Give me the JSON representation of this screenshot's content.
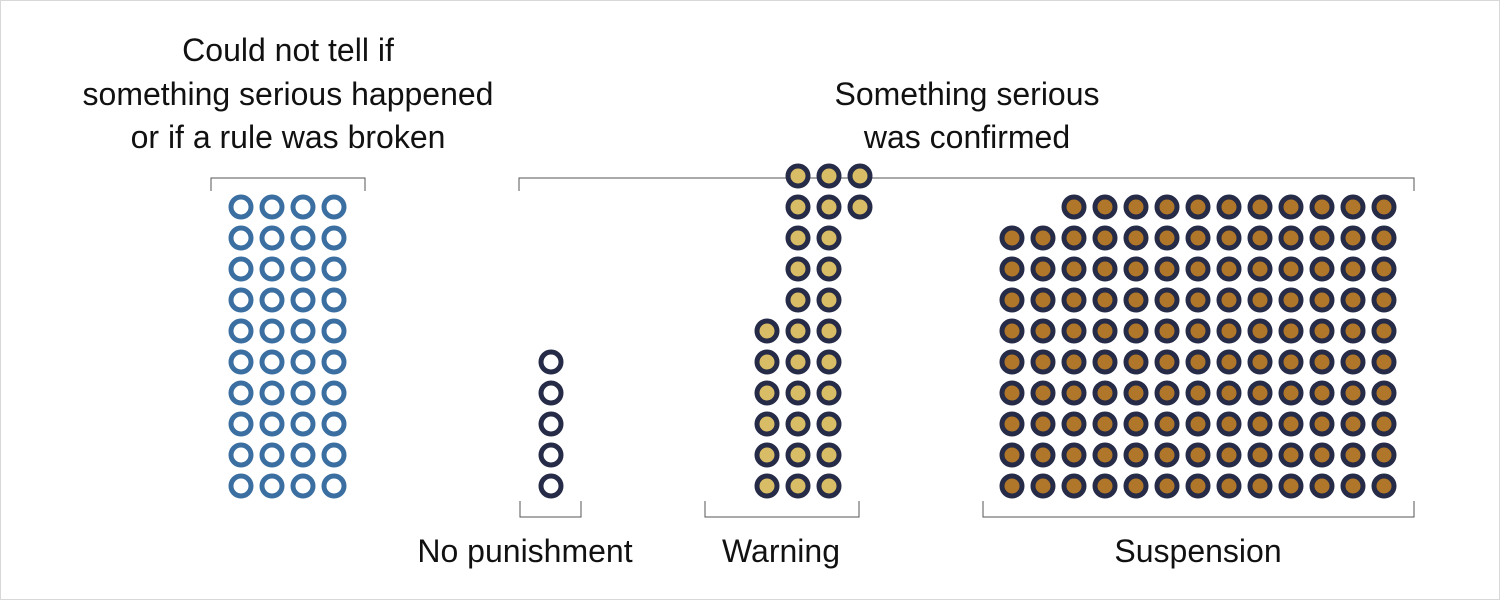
{
  "chart_data": {
    "type": "dot-plot",
    "groups": [
      {
        "key": "unclear",
        "label_lines": [
          "Could not tell if",
          "something serious happened",
          "or if a rule was broken"
        ],
        "count": 40,
        "style": "ring",
        "ring_color": "#3b6fa1",
        "fill_color": "#ffffff"
      },
      {
        "key": "no_punishment",
        "label": "No punishment",
        "count": 5,
        "style": "ring",
        "ring_color": "#262b47",
        "fill_color": "#ffffff"
      },
      {
        "key": "warning",
        "label": "Warning",
        "count": 30,
        "style": "filled",
        "ring_color": "#262b47",
        "fill_color": "#d9bd66"
      },
      {
        "key": "suspension",
        "label": "Suspension",
        "count": 128,
        "style": "filled",
        "ring_color": "#262b47",
        "fill_color": "#b0772a"
      }
    ],
    "confirmed_label_lines": [
      "Something serious",
      "was confirmed"
    ]
  }
}
